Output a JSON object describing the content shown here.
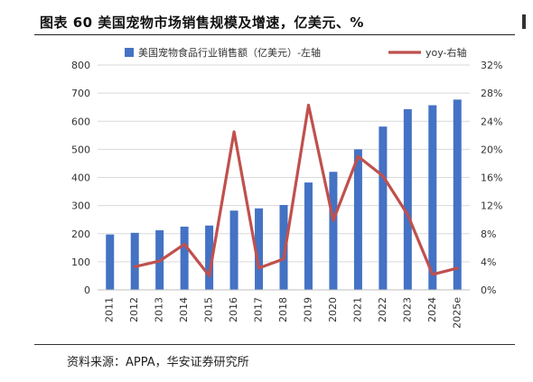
{
  "figure": {
    "title": "图表 60  美国宠物市场销售规模及增速，亿美元、%",
    "source": "资料来源：APPA，华安证券研究所"
  },
  "chart_data": {
    "type": "bar",
    "categories": [
      "2011",
      "2012",
      "2013",
      "2014",
      "2015",
      "2016",
      "2017",
      "2018",
      "2019",
      "2020",
      "2021",
      "2022",
      "2023",
      "2024",
      "2025e"
    ],
    "series": [
      {
        "name": "美国宠物食品行业销售额（亿美元）-左轴",
        "type": "bar",
        "axis": "left",
        "color": "#4472C4",
        "values": [
          197,
          203,
          212,
          225,
          229,
          282,
          290,
          302,
          382,
          420,
          500,
          581,
          643,
          657,
          677
        ]
      },
      {
        "name": "yoy-右轴",
        "type": "line",
        "axis": "right",
        "color": "#C0504D",
        "values": [
          null,
          3.3,
          4.1,
          6.5,
          2.0,
          22.5,
          3.1,
          4.4,
          26.3,
          9.9,
          19.0,
          16.2,
          10.7,
          2.2,
          3.1
        ]
      }
    ],
    "y_left": {
      "ylim": [
        0,
        800
      ],
      "ticks": [
        "0",
        "100",
        "200",
        "300",
        "400",
        "500",
        "600",
        "700",
        "800"
      ]
    },
    "y_right": {
      "ylim": [
        0,
        32
      ],
      "ticks": [
        "0%",
        "4%",
        "8%",
        "12%",
        "16%",
        "20%",
        "24%",
        "28%",
        "32%"
      ]
    },
    "grid": true,
    "legend": "top"
  }
}
